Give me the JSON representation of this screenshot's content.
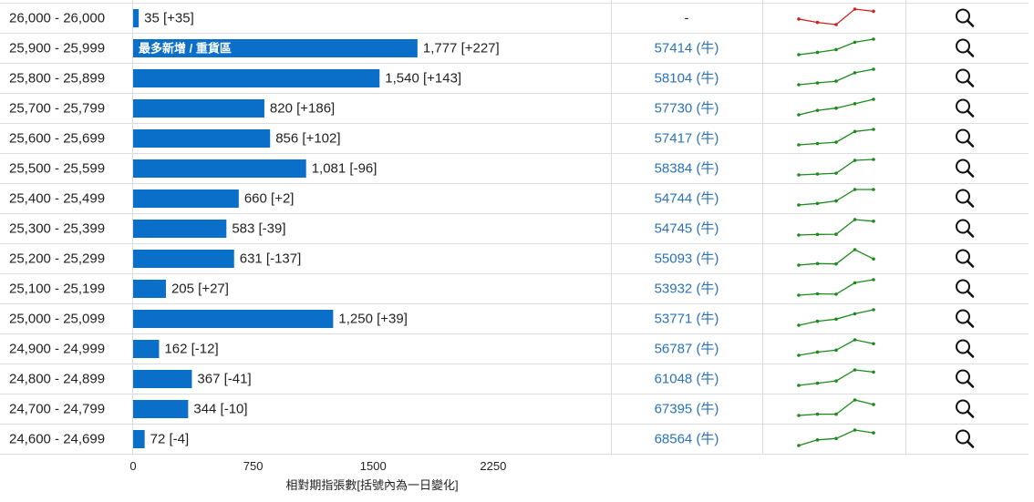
{
  "chart_data": {
    "type": "bar",
    "orientation": "horizontal",
    "categories": [
      "26,000 - 26,000",
      "25,900 - 25,999",
      "25,800 - 25,899",
      "25,700 - 25,799",
      "25,600 - 25,699",
      "25,500 - 25,599",
      "25,400 - 25,499",
      "25,300 - 25,399",
      "25,200 - 25,299",
      "25,100 - 25,199",
      "25,000 - 25,099",
      "24,900 - 24,999",
      "24,800 - 24,899",
      "24,700 - 24,799",
      "24,600 - 24,699"
    ],
    "values": [
      35,
      1777,
      1540,
      820,
      856,
      1081,
      660,
      583,
      631,
      205,
      1250,
      162,
      367,
      344,
      72
    ],
    "changes": [
      "+35",
      "+227",
      "+143",
      "+186",
      "+102",
      "-96",
      "+2",
      "-39",
      "-137",
      "+27",
      "+39",
      "-12",
      "-41",
      "-10",
      "-4"
    ],
    "value_labels": [
      "35 [+35]",
      "1,777 [+227]",
      "1,540 [+143]",
      "820 [+186]",
      "856 [+102]",
      "1,081 [-96]",
      "660 [+2]",
      "583 [-39]",
      "631 [-137]",
      "205 [+27]",
      "1,250 [+39]",
      "162 [-12]",
      "367 [-41]",
      "344 [-10]",
      "72 [-4]"
    ],
    "highlight": {
      "row": 1,
      "label": "最多新增 / 重貨區"
    },
    "open_interest": [
      "-",
      "57414 (牛)",
      "58104 (牛)",
      "57730 (牛)",
      "57417 (牛)",
      "58384 (牛)",
      "54744 (牛)",
      "54745 (牛)",
      "55093 (牛)",
      "53932 (牛)",
      "53771 (牛)",
      "56787 (牛)",
      "61048 (牛)",
      "67395 (牛)",
      "68564 (牛)"
    ],
    "trend_colors": [
      "#cc2222",
      "#1e8a1e",
      "#1e8a1e",
      "#1e8a1e",
      "#1e8a1e",
      "#1e8a1e",
      "#1e8a1e",
      "#1e8a1e",
      "#1e8a1e",
      "#1e8a1e",
      "#1e8a1e",
      "#1e8a1e",
      "#1e8a1e",
      "#1e8a1e",
      "#1e8a1e"
    ],
    "trends": [
      [
        35,
        32,
        30,
        44,
        42
      ],
      [
        1480,
        1510,
        1545,
        1640,
        1680
      ],
      [
        1380,
        1395,
        1410,
        1480,
        1510
      ],
      [
        560,
        600,
        620,
        660,
        700
      ],
      [
        740,
        750,
        760,
        840,
        856
      ],
      [
        900,
        910,
        920,
        1070,
        1081
      ],
      [
        640,
        646,
        656,
        700,
        700
      ],
      [
        548,
        552,
        553,
        640,
        630
      ],
      [
        600,
        608,
        606,
        680,
        632
      ],
      [
        160,
        164,
        163,
        196,
        205
      ],
      [
        1020,
        1080,
        1110,
        1190,
        1250
      ],
      [
        130,
        140,
        146,
        178,
        166
      ],
      [
        330,
        336,
        342,
        372,
        366
      ],
      [
        318,
        322,
        322,
        366,
        352
      ],
      [
        50,
        58,
        60,
        72,
        68
      ]
    ],
    "xlim": [
      0,
      2250
    ],
    "xticks": [
      "0",
      "750",
      "1500",
      "2250"
    ],
    "xlabel": "相對期指張數[括號內為一日變化]",
    "colors": {
      "bar": "#0a6fc8",
      "grid": "#dddddd",
      "open_interest_text": "#2a73b8"
    }
  }
}
